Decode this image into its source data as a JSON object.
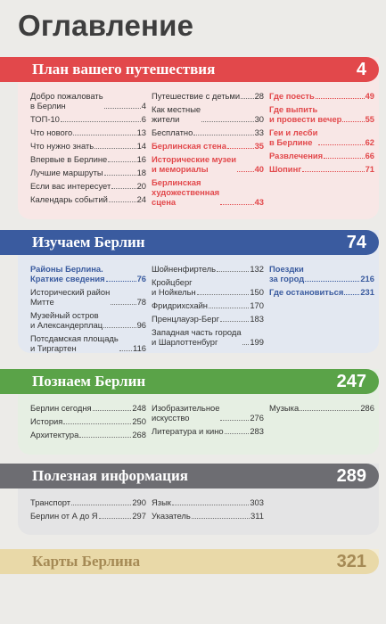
{
  "title": "Оглавление",
  "sections": [
    {
      "title": "План вашего путешествия",
      "page": "4",
      "color": "#e2484b",
      "panel_color": "#f8e7e6",
      "text_color": "#333333",
      "highlight_color": "#e2484b",
      "columns": [
        [
          {
            "label": "Добро пожаловать\nв Берлин",
            "page": "4"
          },
          {
            "label": "ТОП-10",
            "page": "6"
          },
          {
            "label": "Что нового",
            "page": "13"
          },
          {
            "label": "Что нужно знать",
            "page": "14"
          },
          {
            "label": "Впервые в Берлине",
            "page": "16"
          },
          {
            "label": "Лучшие маршруты",
            "page": "18"
          },
          {
            "label": "Если вас интересует",
            "page": "20"
          },
          {
            "label": "Календарь событий",
            "page": "24"
          }
        ],
        [
          {
            "label": "Путешествие с детьми",
            "page": "28"
          },
          {
            "label": "Как местные\nжители",
            "page": "30"
          },
          {
            "label": "Бесплатно",
            "page": "33"
          },
          {
            "label": "Берлинская стена",
            "page": "35",
            "hl": true
          },
          {
            "label": "Исторические музеи\nи мемориалы",
            "page": "40",
            "hl": true
          },
          {
            "label": "Берлинская\nхудожественная\nсцена",
            "page": "43",
            "hl": true
          }
        ],
        [
          {
            "label": "Где поесть",
            "page": "49",
            "hl": true
          },
          {
            "label": "Где выпить\nи провести вечер",
            "page": "55",
            "hl": true
          },
          {
            "label": "Геи и лесби\nв Берлине",
            "page": "62",
            "hl": true
          },
          {
            "label": "Развлечения",
            "page": "66",
            "hl": true
          },
          {
            "label": "Шопинг",
            "page": "71",
            "hl": true
          }
        ]
      ]
    },
    {
      "title": "Изучаем Берлин",
      "page": "74",
      "color": "#3a5b9f",
      "panel_color": "#e3e8f1",
      "text_color": "#333333",
      "highlight_color": "#3a5b9f",
      "columns": [
        [
          {
            "label": "Районы Берлина.\nКраткие сведения",
            "page": "76",
            "hl": true
          },
          {
            "label": "Исторический район\nМитте",
            "page": "78"
          },
          {
            "label": "Музейный остров\nи Александерплац",
            "page": "96"
          },
          {
            "label": "Потсдамская площадь\nи Тиргартен",
            "page": "116"
          }
        ],
        [
          {
            "label": "Шойненфиртель",
            "page": "132"
          },
          {
            "label": "Кройцберг\nи Нойкельн",
            "page": "150"
          },
          {
            "label": "Фридрихсхайн",
            "page": "170"
          },
          {
            "label": "Пренцлауэр-Берг",
            "page": "183"
          },
          {
            "label": "Западная часть города\nи Шарлоттенбург",
            "page": "199"
          }
        ],
        [
          {
            "label": "Поездки\nза город",
            "page": "216",
            "hl": true
          },
          {
            "label": "Где остановиться",
            "page": "231",
            "hl": true
          }
        ]
      ]
    },
    {
      "title": "Познаем Берлин",
      "page": "247",
      "color": "#5aa348",
      "panel_color": "#e6efe3",
      "text_color": "#333333",
      "highlight_color": "#5aa348",
      "columns": [
        [
          {
            "label": "Берлин сегодня",
            "page": "248"
          },
          {
            "label": "История",
            "page": "250"
          },
          {
            "label": "Архитектура",
            "page": "268"
          }
        ],
        [
          {
            "label": "Изобразительное\nискусство",
            "page": "276"
          },
          {
            "label": "Литература и кино",
            "page": "283"
          }
        ],
        [
          {
            "label": "Музыка",
            "page": "286"
          }
        ]
      ]
    },
    {
      "title": "Полезная информация",
      "page": "289",
      "color": "#6d6d72",
      "panel_color": "#e4e4e5",
      "text_color": "#333333",
      "highlight_color": "#6d6d72",
      "columns": [
        [
          {
            "label": "Транспорт",
            "page": "290"
          },
          {
            "label": "Берлин от А до Я",
            "page": "297"
          }
        ],
        [
          {
            "label": "Язык",
            "page": "303"
          },
          {
            "label": "Указатель",
            "page": "311"
          }
        ],
        []
      ]
    },
    {
      "title": "Карты Берлина",
      "page": "321",
      "color": "#e9d9a8",
      "panel_color": "#f3ecd6",
      "text_color": "#a58a55",
      "highlight_color": "#a58a55",
      "columns": [
        [],
        [],
        []
      ]
    }
  ]
}
